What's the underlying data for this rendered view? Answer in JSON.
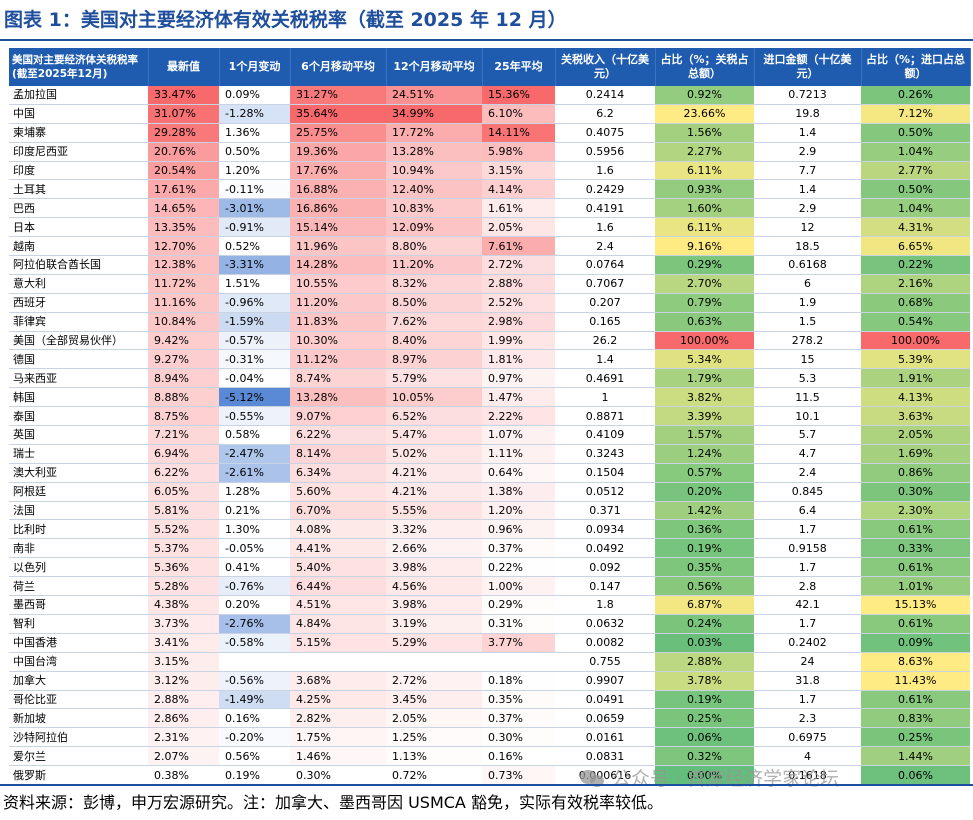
{
  "title": "图表 1：美国对主要经济体有效关税税率（截至 2025 年 12 月）",
  "table": {
    "headers": [
      "美国对主要经济体关税税率(截至2025年12月)",
      "最新值",
      "1个月变动",
      "6个月移动平均",
      "12个月移动平均",
      "25年平均",
      "关税收入（十亿美元）",
      "占比（%；关税占总额）",
      "进口金额（十亿美元）",
      "占比（%；进口占总额）"
    ],
    "rows": [
      [
        "孟加拉国",
        "33.47%",
        "0.09%",
        "31.27%",
        "24.51%",
        "15.36%",
        "0.2414",
        "0.92%",
        "0.7213",
        "0.26%"
      ],
      [
        "中国",
        "31.07%",
        "-1.28%",
        "35.64%",
        "34.99%",
        "6.10%",
        "6.2",
        "23.66%",
        "19.8",
        "7.12%"
      ],
      [
        "柬埔寨",
        "29.28%",
        "1.36%",
        "25.75%",
        "17.72%",
        "14.11%",
        "0.4075",
        "1.56%",
        "1.4",
        "0.50%"
      ],
      [
        "印度尼西亚",
        "20.76%",
        "0.50%",
        "19.36%",
        "13.28%",
        "5.98%",
        "0.5956",
        "2.27%",
        "2.9",
        "1.04%"
      ],
      [
        "印度",
        "20.54%",
        "1.20%",
        "17.76%",
        "10.94%",
        "3.15%",
        "1.6",
        "6.11%",
        "7.7",
        "2.77%"
      ],
      [
        "土耳其",
        "17.61%",
        "-0.11%",
        "16.88%",
        "12.40%",
        "4.14%",
        "0.2429",
        "0.93%",
        "1.4",
        "0.50%"
      ],
      [
        "巴西",
        "14.65%",
        "-3.01%",
        "16.86%",
        "10.83%",
        "1.61%",
        "0.4191",
        "1.60%",
        "2.9",
        "1.04%"
      ],
      [
        "日本",
        "13.35%",
        "-0.91%",
        "15.14%",
        "12.09%",
        "2.05%",
        "1.6",
        "6.11%",
        "12",
        "4.31%"
      ],
      [
        "越南",
        "12.70%",
        "0.52%",
        "11.96%",
        "8.80%",
        "7.61%",
        "2.4",
        "9.16%",
        "18.5",
        "6.65%"
      ],
      [
        "阿拉伯联合酋长国",
        "12.38%",
        "-3.31%",
        "14.28%",
        "11.20%",
        "2.72%",
        "0.0764",
        "0.29%",
        "0.6168",
        "0.22%"
      ],
      [
        "意大利",
        "11.72%",
        "1.51%",
        "10.55%",
        "8.32%",
        "2.88%",
        "0.7067",
        "2.70%",
        "6",
        "2.16%"
      ],
      [
        "西班牙",
        "11.16%",
        "-0.96%",
        "11.20%",
        "8.50%",
        "2.52%",
        "0.207",
        "0.79%",
        "1.9",
        "0.68%"
      ],
      [
        "菲律宾",
        "10.84%",
        "-1.59%",
        "11.83%",
        "7.62%",
        "2.98%",
        "0.165",
        "0.63%",
        "1.5",
        "0.54%"
      ],
      [
        "美国（全部贸易伙伴）",
        "9.42%",
        "-0.57%",
        "10.30%",
        "8.40%",
        "1.99%",
        "26.2",
        "100.00%",
        "278.2",
        "100.00%"
      ],
      [
        "德国",
        "9.27%",
        "-0.31%",
        "11.12%",
        "8.97%",
        "1.81%",
        "1.4",
        "5.34%",
        "15",
        "5.39%"
      ],
      [
        "马来西亚",
        "8.94%",
        "-0.04%",
        "8.74%",
        "5.79%",
        "0.97%",
        "0.4691",
        "1.79%",
        "5.3",
        "1.91%"
      ],
      [
        "韩国",
        "8.88%",
        "-5.12%",
        "13.28%",
        "10.05%",
        "1.47%",
        "1",
        "3.82%",
        "11.5",
        "4.13%"
      ],
      [
        "泰国",
        "8.75%",
        "-0.55%",
        "9.07%",
        "6.52%",
        "2.22%",
        "0.8871",
        "3.39%",
        "10.1",
        "3.63%"
      ],
      [
        "英国",
        "7.21%",
        "0.58%",
        "6.22%",
        "5.47%",
        "1.07%",
        "0.4109",
        "1.57%",
        "5.7",
        "2.05%"
      ],
      [
        "瑞士",
        "6.94%",
        "-2.47%",
        "8.14%",
        "5.02%",
        "1.11%",
        "0.3243",
        "1.24%",
        "4.7",
        "1.69%"
      ],
      [
        "澳大利亚",
        "6.22%",
        "-2.61%",
        "6.34%",
        "4.21%",
        "0.64%",
        "0.1504",
        "0.57%",
        "2.4",
        "0.86%"
      ],
      [
        "阿根廷",
        "6.05%",
        "1.28%",
        "5.60%",
        "4.21%",
        "1.38%",
        "0.0512",
        "0.20%",
        "0.845",
        "0.30%"
      ],
      [
        "法国",
        "5.81%",
        "0.21%",
        "6.70%",
        "5.55%",
        "1.20%",
        "0.371",
        "1.42%",
        "6.4",
        "2.30%"
      ],
      [
        "比利时",
        "5.52%",
        "1.30%",
        "4.08%",
        "3.32%",
        "0.96%",
        "0.0934",
        "0.36%",
        "1.7",
        "0.61%"
      ],
      [
        "南非",
        "5.37%",
        "-0.05%",
        "4.41%",
        "2.66%",
        "0.37%",
        "0.0492",
        "0.19%",
        "0.9158",
        "0.33%"
      ],
      [
        "以色列",
        "5.36%",
        "0.41%",
        "5.40%",
        "3.98%",
        "0.22%",
        "0.092",
        "0.35%",
        "1.7",
        "0.61%"
      ],
      [
        "荷兰",
        "5.28%",
        "-0.76%",
        "6.44%",
        "4.56%",
        "1.00%",
        "0.147",
        "0.56%",
        "2.8",
        "1.01%"
      ],
      [
        "墨西哥",
        "4.38%",
        "0.20%",
        "4.51%",
        "3.98%",
        "0.29%",
        "1.8",
        "6.87%",
        "42.1",
        "15.13%"
      ],
      [
        "智利",
        "3.73%",
        "-2.76%",
        "4.84%",
        "3.19%",
        "0.31%",
        "0.0632",
        "0.24%",
        "1.7",
        "0.61%"
      ],
      [
        "中国香港",
        "3.41%",
        "-0.58%",
        "5.15%",
        "5.29%",
        "3.77%",
        "0.0082",
        "0.03%",
        "0.2402",
        "0.09%"
      ],
      [
        "中国台湾",
        "3.15%",
        "",
        "",
        "",
        "",
        "0.755",
        "2.88%",
        "24",
        "8.63%"
      ],
      [
        "加拿大",
        "3.12%",
        "-0.56%",
        "3.68%",
        "2.72%",
        "0.18%",
        "0.9907",
        "3.78%",
        "31.8",
        "11.43%"
      ],
      [
        "哥伦比亚",
        "2.88%",
        "-1.49%",
        "4.25%",
        "3.45%",
        "0.35%",
        "0.0491",
        "0.19%",
        "1.7",
        "0.61%"
      ],
      [
        "新加坡",
        "2.86%",
        "0.16%",
        "2.82%",
        "2.05%",
        "0.37%",
        "0.0659",
        "0.25%",
        "2.3",
        "0.83%"
      ],
      [
        "沙特阿拉伯",
        "2.31%",
        "-0.20%",
        "1.75%",
        "1.25%",
        "0.30%",
        "0.0161",
        "0.06%",
        "0.6975",
        "0.25%"
      ],
      [
        "爱尔兰",
        "2.07%",
        "0.56%",
        "1.46%",
        "1.13%",
        "0.16%",
        "0.0831",
        "0.32%",
        "4",
        "1.44%"
      ],
      [
        "俄罗斯",
        "0.38%",
        "0.19%",
        "0.30%",
        "0.72%",
        "0.73%",
        "0.000616",
        "0.00%",
        "0.1618",
        "0.06%"
      ]
    ]
  },
  "source": "资料来源：彭博，申万宏源研究。注：加拿大、墨西哥因 USMCA 豁免，实际有效税率较低。",
  "watermark": "公众号 · 首席经济学家论坛",
  "colors": {
    "brand_blue": "#1f4e9c",
    "header_bg": "#1f5cb0",
    "heat_high": "#f8696b",
    "heat_low": "#ffffff",
    "change_neg": "#5a8ad6",
    "share_low": "#63be7b",
    "share_mid": "#ffeb84"
  }
}
